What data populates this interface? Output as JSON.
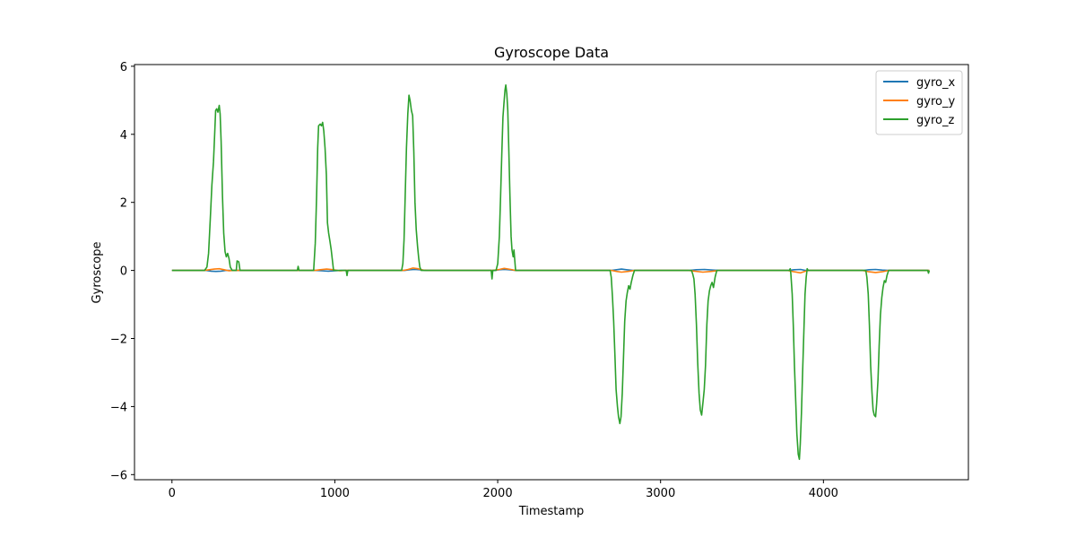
{
  "chart_data": {
    "type": "line",
    "title": "Gyroscope Data",
    "xlabel": "Timestamp",
    "ylabel": "Gyroscope",
    "xlim": [
      -230,
      4890
    ],
    "ylim": [
      -6.15,
      6.05
    ],
    "x_ticks": [
      0,
      1000,
      2000,
      3000,
      4000
    ],
    "y_ticks": [
      -6,
      -4,
      -2,
      0,
      2,
      4,
      6
    ],
    "y_tick_labels": [
      "−6",
      "−4",
      "−2",
      "0",
      "2",
      "4",
      "6"
    ],
    "grid": false,
    "legend_position": "top-right",
    "series": [
      {
        "name": "gyro_x",
        "color": "#1f77b4",
        "points": [
          [
            0,
            0
          ],
          [
            210,
            0
          ],
          [
            240,
            -0.02
          ],
          [
            270,
            -0.03
          ],
          [
            300,
            -0.02
          ],
          [
            330,
            0
          ],
          [
            880,
            0
          ],
          [
            920,
            -0.01
          ],
          [
            960,
            -0.02
          ],
          [
            1000,
            -0.01
          ],
          [
            1040,
            0
          ],
          [
            1430,
            0
          ],
          [
            1460,
            0.02
          ],
          [
            1490,
            0.03
          ],
          [
            1520,
            0.02
          ],
          [
            1560,
            0
          ],
          [
            1980,
            0
          ],
          [
            2010,
            0.02
          ],
          [
            2040,
            0.03
          ],
          [
            2070,
            0.02
          ],
          [
            2110,
            0
          ],
          [
            2700,
            0
          ],
          [
            2730,
            0.02
          ],
          [
            2760,
            0.04
          ],
          [
            2790,
            0.02
          ],
          [
            2830,
            0
          ],
          [
            3180,
            0
          ],
          [
            3220,
            0.02
          ],
          [
            3270,
            0.03
          ],
          [
            3320,
            0.01
          ],
          [
            3360,
            0
          ],
          [
            3790,
            0
          ],
          [
            3820,
            0.02
          ],
          [
            3860,
            0.03
          ],
          [
            3890,
            0
          ],
          [
            4250,
            0
          ],
          [
            4280,
            0.02
          ],
          [
            4320,
            0.03
          ],
          [
            4360,
            0.01
          ],
          [
            4400,
            0
          ],
          [
            4650,
            0
          ]
        ]
      },
      {
        "name": "gyro_y",
        "color": "#ff7f0e",
        "points": [
          [
            0,
            0
          ],
          [
            200,
            0
          ],
          [
            230,
            0.02
          ],
          [
            260,
            0.04
          ],
          [
            290,
            0.05
          ],
          [
            320,
            0.02
          ],
          [
            350,
            -0.01
          ],
          [
            380,
            0
          ],
          [
            880,
            0
          ],
          [
            910,
            0.02
          ],
          [
            950,
            0.04
          ],
          [
            990,
            0.02
          ],
          [
            1030,
            -0.01
          ],
          [
            1060,
            0
          ],
          [
            1420,
            0
          ],
          [
            1450,
            0.03
          ],
          [
            1480,
            0.07
          ],
          [
            1510,
            0.05
          ],
          [
            1540,
            0.01
          ],
          [
            1570,
            0
          ],
          [
            1970,
            0
          ],
          [
            2010,
            0.03
          ],
          [
            2040,
            0.06
          ],
          [
            2080,
            0.03
          ],
          [
            2110,
            0
          ],
          [
            2700,
            0
          ],
          [
            2730,
            -0.03
          ],
          [
            2760,
            -0.05
          ],
          [
            2800,
            -0.03
          ],
          [
            2840,
            0
          ],
          [
            3170,
            0
          ],
          [
            3210,
            -0.02
          ],
          [
            3260,
            -0.05
          ],
          [
            3310,
            -0.03
          ],
          [
            3360,
            0
          ],
          [
            3780,
            0
          ],
          [
            3820,
            -0.04
          ],
          [
            3860,
            -0.07
          ],
          [
            3890,
            -0.02
          ],
          [
            3910,
            0
          ],
          [
            4240,
            0
          ],
          [
            4280,
            -0.04
          ],
          [
            4320,
            -0.06
          ],
          [
            4360,
            -0.04
          ],
          [
            4400,
            0
          ],
          [
            4650,
            0
          ]
        ]
      },
      {
        "name": "gyro_z",
        "color": "#2ca02c",
        "points": [
          [
            0,
            0
          ],
          [
            200,
            0
          ],
          [
            215,
            0.1
          ],
          [
            225,
            0.5
          ],
          [
            235,
            1.5
          ],
          [
            245,
            2.5
          ],
          [
            255,
            3.2
          ],
          [
            262,
            4.0
          ],
          [
            268,
            4.7
          ],
          [
            275,
            4.75
          ],
          [
            282,
            4.65
          ],
          [
            290,
            4.85
          ],
          [
            296,
            4.6
          ],
          [
            302,
            3.8
          ],
          [
            310,
            2.2
          ],
          [
            318,
            1.1
          ],
          [
            326,
            0.55
          ],
          [
            334,
            0.4
          ],
          [
            342,
            0.5
          ],
          [
            350,
            0.35
          ],
          [
            358,
            0.1
          ],
          [
            370,
            0
          ],
          [
            395,
            0
          ],
          [
            400,
            0.28
          ],
          [
            410,
            0.25
          ],
          [
            418,
            0
          ],
          [
            770,
            0
          ],
          [
            775,
            0.12
          ],
          [
            780,
            0
          ],
          [
            870,
            0
          ],
          [
            880,
            0.8
          ],
          [
            888,
            2.2
          ],
          [
            895,
            3.6
          ],
          [
            900,
            4.25
          ],
          [
            910,
            4.3
          ],
          [
            918,
            4.25
          ],
          [
            925,
            4.35
          ],
          [
            932,
            4.1
          ],
          [
            940,
            3.6
          ],
          [
            948,
            2.8
          ],
          [
            955,
            1.4
          ],
          [
            962,
            1.1
          ],
          [
            970,
            0.85
          ],
          [
            978,
            0.6
          ],
          [
            985,
            0.3
          ],
          [
            992,
            0
          ],
          [
            1070,
            0
          ],
          [
            1075,
            -0.15
          ],
          [
            1080,
            0
          ],
          [
            1410,
            0
          ],
          [
            1418,
            0.2
          ],
          [
            1425,
            0.9
          ],
          [
            1432,
            2.2
          ],
          [
            1440,
            3.6
          ],
          [
            1448,
            4.6
          ],
          [
            1455,
            5.15
          ],
          [
            1462,
            5.0
          ],
          [
            1470,
            4.7
          ],
          [
            1478,
            4.55
          ],
          [
            1485,
            3.5
          ],
          [
            1492,
            2.0
          ],
          [
            1500,
            1.2
          ],
          [
            1508,
            0.7
          ],
          [
            1515,
            0.35
          ],
          [
            1522,
            0.1
          ],
          [
            1530,
            0
          ],
          [
            1960,
            0
          ],
          [
            1965,
            -0.25
          ],
          [
            1970,
            0
          ],
          [
            1990,
            0
          ],
          [
            2000,
            0.2
          ],
          [
            2010,
            1.0
          ],
          [
            2018,
            2.2
          ],
          [
            2025,
            3.4
          ],
          [
            2032,
            4.5
          ],
          [
            2038,
            4.9
          ],
          [
            2045,
            5.3
          ],
          [
            2050,
            5.45
          ],
          [
            2056,
            5.2
          ],
          [
            2062,
            4.7
          ],
          [
            2068,
            3.6
          ],
          [
            2075,
            2.2
          ],
          [
            2082,
            1.0
          ],
          [
            2088,
            0.6
          ],
          [
            2095,
            0.4
          ],
          [
            2100,
            0.6
          ],
          [
            2105,
            0.3
          ],
          [
            2110,
            0
          ],
          [
            2690,
            0
          ],
          [
            2697,
            -0.2
          ],
          [
            2705,
            -0.8
          ],
          [
            2712,
            -1.5
          ],
          [
            2720,
            -2.5
          ],
          [
            2727,
            -3.5
          ],
          [
            2735,
            -4.0
          ],
          [
            2742,
            -4.3
          ],
          [
            2750,
            -4.5
          ],
          [
            2757,
            -4.3
          ],
          [
            2765,
            -3.6
          ],
          [
            2772,
            -2.6
          ],
          [
            2780,
            -1.5
          ],
          [
            2788,
            -0.9
          ],
          [
            2796,
            -0.65
          ],
          [
            2804,
            -0.45
          ],
          [
            2812,
            -0.55
          ],
          [
            2820,
            -0.35
          ],
          [
            2830,
            -0.15
          ],
          [
            2840,
            0
          ],
          [
            3190,
            0
          ],
          [
            3197,
            -0.1
          ],
          [
            3205,
            -0.25
          ],
          [
            3212,
            -0.7
          ],
          [
            3220,
            -1.6
          ],
          [
            3228,
            -2.7
          ],
          [
            3236,
            -3.6
          ],
          [
            3244,
            -4.1
          ],
          [
            3252,
            -4.25
          ],
          [
            3260,
            -3.9
          ],
          [
            3268,
            -3.5
          ],
          [
            3276,
            -2.8
          ],
          [
            3284,
            -1.6
          ],
          [
            3292,
            -0.9
          ],
          [
            3300,
            -0.6
          ],
          [
            3308,
            -0.45
          ],
          [
            3316,
            -0.35
          ],
          [
            3325,
            -0.5
          ],
          [
            3335,
            -0.2
          ],
          [
            3345,
            0
          ],
          [
            3790,
            0
          ],
          [
            3796,
            0.05
          ],
          [
            3800,
            -0.1
          ],
          [
            3808,
            -0.7
          ],
          [
            3815,
            -1.6
          ],
          [
            3822,
            -2.8
          ],
          [
            3830,
            -3.9
          ],
          [
            3837,
            -4.8
          ],
          [
            3845,
            -5.4
          ],
          [
            3852,
            -5.55
          ],
          [
            3858,
            -5.1
          ],
          [
            3865,
            -4.2
          ],
          [
            3872,
            -3.0
          ],
          [
            3880,
            -1.8
          ],
          [
            3887,
            -0.7
          ],
          [
            3894,
            -0.2
          ],
          [
            3900,
            0.05
          ],
          [
            3906,
            0
          ],
          [
            4260,
            0
          ],
          [
            4267,
            -0.2
          ],
          [
            4275,
            -0.7
          ],
          [
            4282,
            -1.6
          ],
          [
            4290,
            -2.8
          ],
          [
            4298,
            -3.6
          ],
          [
            4305,
            -4.1
          ],
          [
            4312,
            -4.25
          ],
          [
            4320,
            -4.3
          ],
          [
            4327,
            -3.9
          ],
          [
            4335,
            -3.2
          ],
          [
            4342,
            -2.2
          ],
          [
            4350,
            -1.3
          ],
          [
            4358,
            -0.8
          ],
          [
            4366,
            -0.5
          ],
          [
            4374,
            -0.3
          ],
          [
            4382,
            -0.35
          ],
          [
            4390,
            -0.15
          ],
          [
            4400,
            0
          ],
          [
            4640,
            0
          ],
          [
            4645,
            -0.08
          ],
          [
            4650,
            0
          ]
        ]
      }
    ]
  }
}
